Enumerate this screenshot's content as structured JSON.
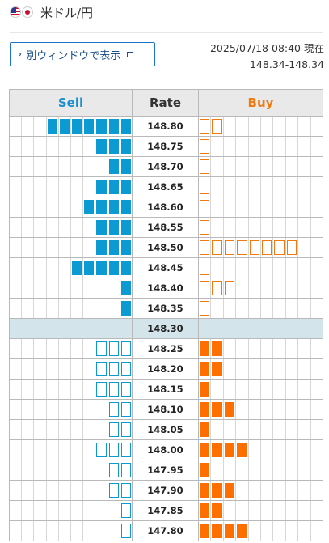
{
  "header": {
    "pair_label": "米ドル/円",
    "flags": [
      "us-flag-icon",
      "jp-flag-icon"
    ]
  },
  "popout_button": {
    "label": "別ウィンドウで表示",
    "icon": "new-window-icon"
  },
  "timestamp": {
    "datetime": "2025/07/18 08:40 現在",
    "spread": "148.34-148.34"
  },
  "colors": {
    "sell": "#0c9ad2",
    "buy": "#ff6f00",
    "mid_row": "#d3e4ea"
  },
  "book": {
    "columns": {
      "sell": "Sell",
      "rate": "Rate",
      "buy": "Buy"
    },
    "cells_per_side": 10,
    "rows": [
      {
        "rate": "148.80",
        "sell": 7,
        "sell_style": "solid",
        "buy": 2,
        "buy_style": "hollow"
      },
      {
        "rate": "148.75",
        "sell": 3,
        "sell_style": "solid",
        "buy": 1,
        "buy_style": "hollow"
      },
      {
        "rate": "148.70",
        "sell": 2,
        "sell_style": "solid",
        "buy": 1,
        "buy_style": "hollow"
      },
      {
        "rate": "148.65",
        "sell": 3,
        "sell_style": "solid",
        "buy": 1,
        "buy_style": "hollow"
      },
      {
        "rate": "148.60",
        "sell": 4,
        "sell_style": "solid",
        "buy": 1,
        "buy_style": "hollow"
      },
      {
        "rate": "148.55",
        "sell": 3,
        "sell_style": "solid",
        "buy": 1,
        "buy_style": "hollow"
      },
      {
        "rate": "148.50",
        "sell": 3,
        "sell_style": "solid",
        "buy": 8,
        "buy_style": "hollow"
      },
      {
        "rate": "148.45",
        "sell": 5,
        "sell_style": "solid",
        "buy": 1,
        "buy_style": "hollow"
      },
      {
        "rate": "148.40",
        "sell": 1,
        "sell_style": "solid",
        "buy": 3,
        "buy_style": "hollow"
      },
      {
        "rate": "148.35",
        "sell": 1,
        "sell_style": "solid",
        "buy": 1,
        "buy_style": "hollow"
      },
      {
        "rate": "148.30",
        "sell": 0,
        "sell_style": "solid",
        "buy": 0,
        "buy_style": "solid",
        "mid": true
      },
      {
        "rate": "148.25",
        "sell": 3,
        "sell_style": "hollow",
        "buy": 2,
        "buy_style": "solid"
      },
      {
        "rate": "148.20",
        "sell": 3,
        "sell_style": "hollow",
        "buy": 2,
        "buy_style": "solid"
      },
      {
        "rate": "148.15",
        "sell": 3,
        "sell_style": "hollow",
        "buy": 1,
        "buy_style": "solid"
      },
      {
        "rate": "148.10",
        "sell": 2,
        "sell_style": "hollow",
        "buy": 3,
        "buy_style": "solid"
      },
      {
        "rate": "148.05",
        "sell": 2,
        "sell_style": "hollow",
        "buy": 1,
        "buy_style": "solid"
      },
      {
        "rate": "148.00",
        "sell": 3,
        "sell_style": "hollow",
        "buy": 4,
        "buy_style": "solid"
      },
      {
        "rate": "147.95",
        "sell": 2,
        "sell_style": "hollow",
        "buy": 1,
        "buy_style": "solid"
      },
      {
        "rate": "147.90",
        "sell": 2,
        "sell_style": "hollow",
        "buy": 3,
        "buy_style": "solid"
      },
      {
        "rate": "147.85",
        "sell": 1,
        "sell_style": "hollow",
        "buy": 2,
        "buy_style": "solid"
      },
      {
        "rate": "147.80",
        "sell": 1,
        "sell_style": "hollow",
        "buy": 4,
        "buy_style": "solid"
      }
    ]
  }
}
